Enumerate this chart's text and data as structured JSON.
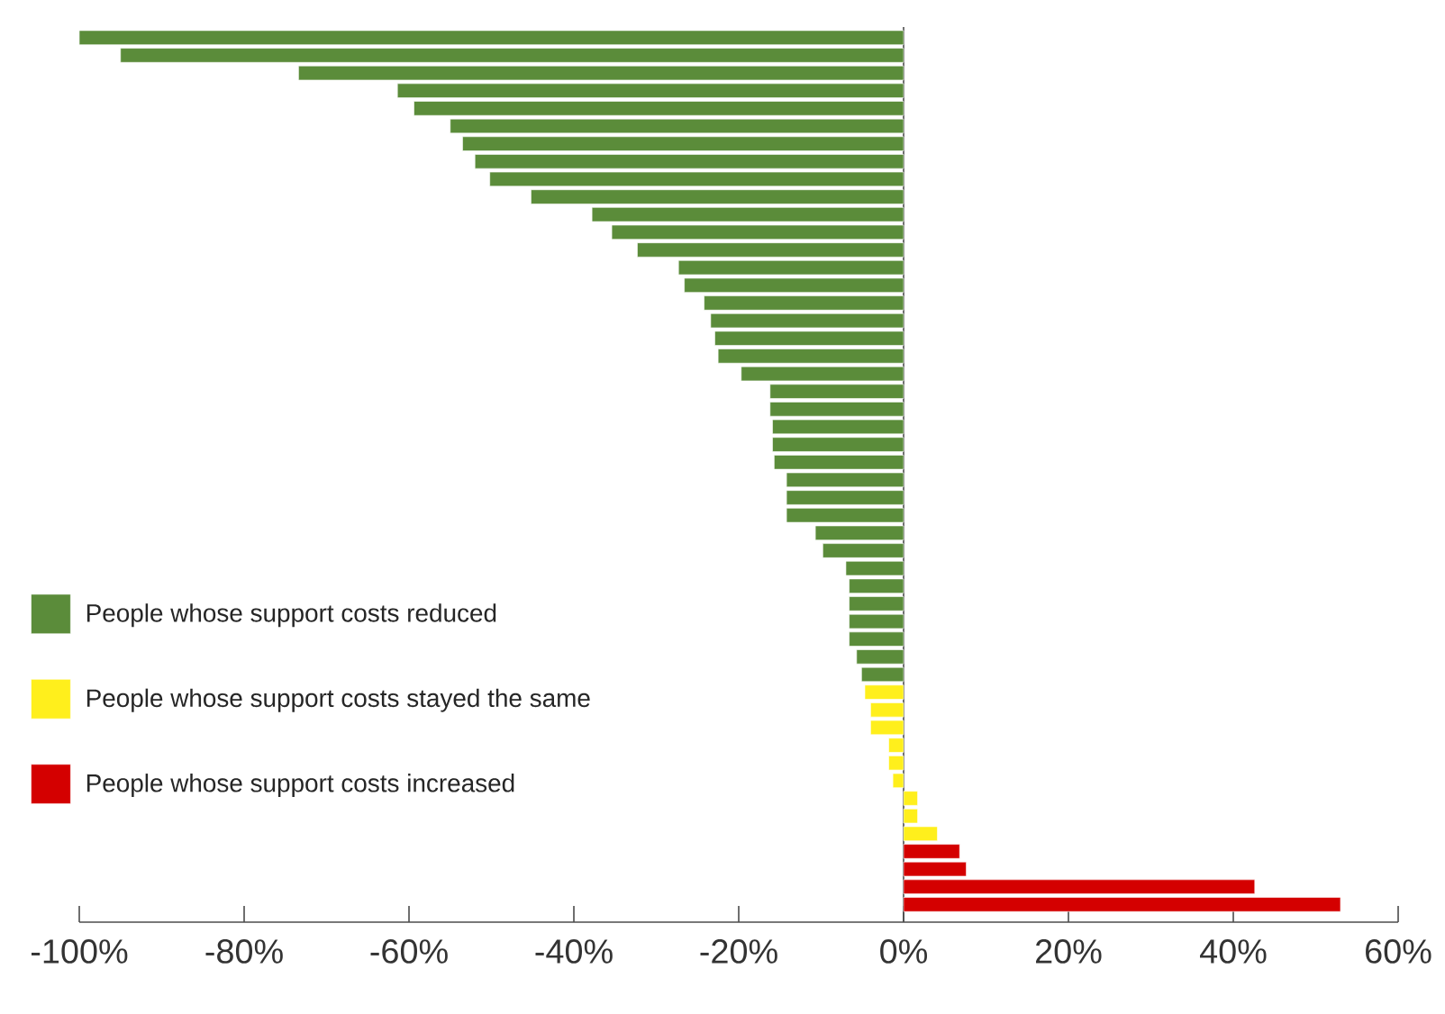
{
  "chart_data": {
    "type": "bar",
    "orientation": "horizontal",
    "categories": [
      null,
      null,
      null,
      null,
      null,
      null,
      null,
      null,
      null,
      null,
      null,
      null,
      null,
      null,
      null,
      null,
      null,
      null,
      null,
      null,
      null,
      null,
      null,
      null,
      null,
      null,
      null,
      null,
      null,
      null,
      null,
      null,
      null,
      null,
      null,
      null,
      null,
      null,
      null,
      null,
      null,
      null,
      null,
      null,
      null,
      null,
      null,
      null,
      null,
      null
    ],
    "series": [
      {
        "name": "People whose support costs reduced",
        "color": "#5b8c3a",
        "values": [
          -100,
          -95,
          -73.4,
          -61.4,
          -59.4,
          -55,
          -53.5,
          -52,
          -50.2,
          -45.2,
          -37.8,
          -35.4,
          -32.3,
          -27.3,
          -26.6,
          -24.2,
          -23.4,
          -22.9,
          -22.5,
          -19.7,
          -16.2,
          -16.2,
          -15.9,
          -15.9,
          -15.7,
          -14.2,
          -14.2,
          -14.2,
          -10.7,
          -9.8,
          -7,
          -6.6,
          -6.6,
          -6.6,
          -6.6,
          -5.7,
          -5.1,
          null,
          null,
          null,
          null,
          null,
          null,
          null,
          null,
          null,
          null,
          null,
          null,
          null
        ]
      },
      {
        "name": "People whose support costs stayed the same",
        "color": "#ffef1c",
        "values": [
          null,
          null,
          null,
          null,
          null,
          null,
          null,
          null,
          null,
          null,
          null,
          null,
          null,
          null,
          null,
          null,
          null,
          null,
          null,
          null,
          null,
          null,
          null,
          null,
          null,
          null,
          null,
          null,
          null,
          null,
          null,
          null,
          null,
          null,
          null,
          null,
          null,
          -4.7,
          -4,
          -4,
          -1.8,
          -1.8,
          -1.3,
          1.7,
          1.7,
          4.1,
          null,
          null,
          null,
          null
        ]
      },
      {
        "name": "People whose support costs increased",
        "color": "#d40000",
        "values": [
          null,
          null,
          null,
          null,
          null,
          null,
          null,
          null,
          null,
          null,
          null,
          null,
          null,
          null,
          null,
          null,
          null,
          null,
          null,
          null,
          null,
          null,
          null,
          null,
          null,
          null,
          null,
          null,
          null,
          null,
          null,
          null,
          null,
          null,
          null,
          null,
          null,
          null,
          null,
          null,
          null,
          null,
          null,
          null,
          null,
          null,
          6.8,
          7.6,
          42.6,
          53
        ]
      }
    ],
    "xlim": [
      -100,
      60
    ],
    "xticks": [
      {
        "value": -100,
        "label": "-100%"
      },
      {
        "value": -80,
        "label": "-80%"
      },
      {
        "value": -60,
        "label": "-60%"
      },
      {
        "value": -40,
        "label": "-40%"
      },
      {
        "value": -20,
        "label": "-20%"
      },
      {
        "value": 0,
        "label": "0%"
      },
      {
        "value": 20,
        "label": "20%"
      },
      {
        "value": 40,
        "label": "40%"
      },
      {
        "value": 60,
        "label": "60%"
      }
    ],
    "legend": "left"
  }
}
